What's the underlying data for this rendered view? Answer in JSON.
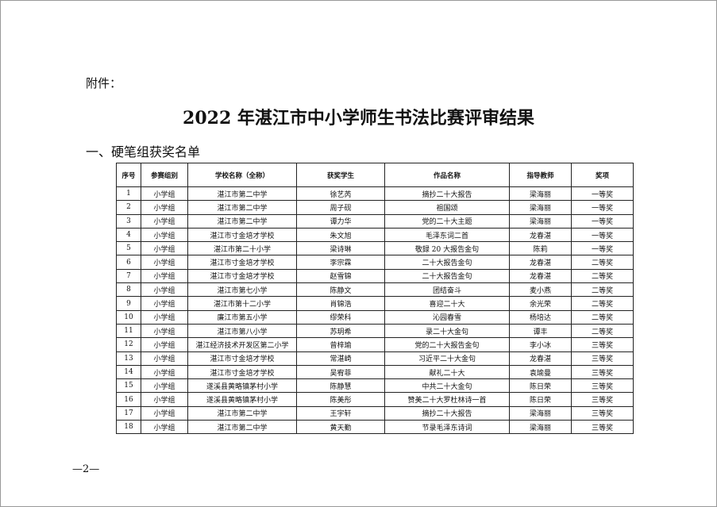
{
  "attachment_label": "附件：",
  "title": "2022 年湛江市中小学师生书法比赛评审结果",
  "section": "一、硬笔组获奖名单",
  "table": {
    "columns": [
      "序号",
      "参赛组别",
      "学校名称（全称）",
      "获奖学生",
      "作品名称",
      "指导教师",
      "奖项"
    ],
    "rows": [
      [
        "1",
        "小学组",
        "湛江市第二中学",
        "徐艺芮",
        "摘抄二十大报告",
        "梁海丽",
        "一等奖"
      ],
      [
        "2",
        "小学组",
        "湛江市第二中学",
        "周子砚",
        "祖国颂",
        "梁海丽",
        "一等奖"
      ],
      [
        "3",
        "小学组",
        "湛江市第二中学",
        "谭力华",
        "党的二十大主题",
        "梁海丽",
        "一等奖"
      ],
      [
        "4",
        "小学组",
        "湛江市寸金培才学校",
        "朱文旭",
        "毛泽东词二首",
        "龙春湛",
        "一等奖"
      ],
      [
        "5",
        "小学组",
        "湛江市第二十小学",
        "梁诗琳",
        "敬録 20 大报告金句",
        "陈莉",
        "一等奖"
      ],
      [
        "6",
        "小学组",
        "湛江市寸金培才学校",
        "李宗霖",
        "二十大报告金句",
        "龙春湛",
        "二等奖"
      ],
      [
        "7",
        "小学组",
        "湛江市寸金培才学校",
        "赵雪锦",
        "二十大报告金句",
        "龙春湛",
        "二等奖"
      ],
      [
        "8",
        "小学组",
        "湛江市第七小学",
        "陈静文",
        "团结奋斗",
        "麦小燕",
        "二等奖"
      ],
      [
        "9",
        "小学组",
        "湛江市第十二小学",
        "肖锦浩",
        "喜迎二十大",
        "余光荣",
        "二等奖"
      ],
      [
        "10",
        "小学组",
        "廉江市第五小学",
        "缪荣科",
        "沁园春雪",
        "杨培达",
        "二等奖"
      ],
      [
        "11",
        "小学组",
        "湛江市第八小学",
        "苏玥希",
        "录二十大金句",
        "谭丰",
        "二等奖"
      ],
      [
        "12",
        "小学组",
        "湛江经济技术开发区第二小学",
        "曾梓瑜",
        "党的二十大报告金句",
        "李小冰",
        "三等奖"
      ],
      [
        "13",
        "小学组",
        "湛江市寸金培才学校",
        "常湛崎",
        "习近平二十大金句",
        "龙春湛",
        "三等奖"
      ],
      [
        "14",
        "小学组",
        "湛江市寸金培才学校",
        "吴宥菲",
        "献礼二十大",
        "袁瑜曼",
        "三等奖"
      ],
      [
        "15",
        "小学组",
        "遂溪县黄略镇茅村小学",
        "陈静慧",
        "中共二十大金句",
        "陈日荣",
        "三等奖"
      ],
      [
        "16",
        "小学组",
        "遂溪县黄略镇茅村小学",
        "陈美彤",
        "赞美二十大罗杜林诗一首",
        "陈日荣",
        "三等奖"
      ],
      [
        "17",
        "小学组",
        "湛江市第二中学",
        "王宇轩",
        "摘抄二十大报告",
        "梁海丽",
        "三等奖"
      ],
      [
        "18",
        "小学组",
        "湛江市第二中学",
        "黄天勤",
        "节录毛泽东诗词",
        "梁海丽",
        "三等奖"
      ]
    ]
  },
  "page_number": "—2—"
}
